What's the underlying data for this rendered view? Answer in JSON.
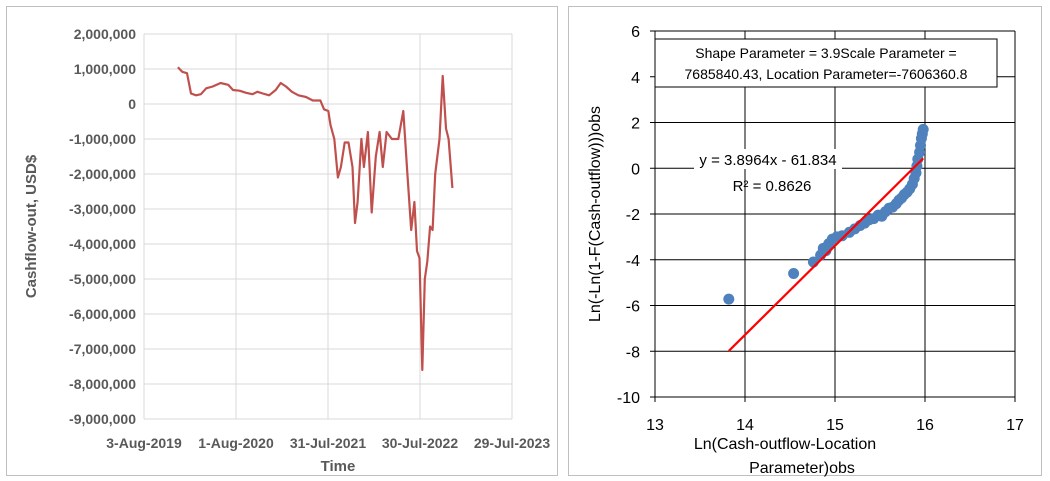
{
  "chart_data": [
    {
      "type": "line",
      "title": "",
      "xlabel": "Time",
      "ylabel": "Cashflow-out, USD$",
      "x_ticks": [
        "3-Aug-2019",
        "1-Aug-2020",
        "31-Jul-2021",
        "30-Jul-2022",
        "29-Jul-2023"
      ],
      "y_ticks": [
        "2,000,000",
        "1,000,000",
        "0",
        "-1,000,000",
        "-2,000,000",
        "-3,000,000",
        "-4,000,000",
        "-5,000,000",
        "-6,000,000",
        "-7,000,000",
        "-8,000,000",
        "-9,000,000"
      ],
      "xlim": [
        "2019-08-03",
        "2023-07-29"
      ],
      "ylim": [
        -9000000,
        2000000
      ],
      "grid": true,
      "line_color": "#c0504d",
      "series": [
        {
          "points": [
            [
              "2019-12-15",
              1050000
            ],
            [
              "2020-01-01",
              920000
            ],
            [
              "2020-01-20",
              880000
            ],
            [
              "2020-02-05",
              300000
            ],
            [
              "2020-02-25",
              250000
            ],
            [
              "2020-03-15",
              280000
            ],
            [
              "2020-04-05",
              450000
            ],
            [
              "2020-05-01",
              500000
            ],
            [
              "2020-06-01",
              600000
            ],
            [
              "2020-07-01",
              550000
            ],
            [
              "2020-07-20",
              400000
            ],
            [
              "2020-08-15",
              380000
            ],
            [
              "2020-09-10",
              320000
            ],
            [
              "2020-10-05",
              280000
            ],
            [
              "2020-10-25",
              350000
            ],
            [
              "2020-11-15",
              300000
            ],
            [
              "2020-12-10",
              250000
            ],
            [
              "2021-01-05",
              400000
            ],
            [
              "2021-01-25",
              600000
            ],
            [
              "2021-02-15",
              500000
            ],
            [
              "2021-03-10",
              350000
            ],
            [
              "2021-04-05",
              250000
            ],
            [
              "2021-05-05",
              200000
            ],
            [
              "2021-06-01",
              100000
            ],
            [
              "2021-07-01",
              100000
            ],
            [
              "2021-07-15",
              -150000
            ],
            [
              "2021-08-01",
              -200000
            ],
            [
              "2021-08-10",
              -600000
            ],
            [
              "2021-08-25",
              -1000000
            ],
            [
              "2021-09-08",
              -2100000
            ],
            [
              "2021-09-20",
              -1800000
            ],
            [
              "2021-10-05",
              -1100000
            ],
            [
              "2021-10-20",
              -1100000
            ],
            [
              "2021-11-05",
              -1800000
            ],
            [
              "2021-11-15",
              -3400000
            ],
            [
              "2021-11-25",
              -2800000
            ],
            [
              "2021-12-10",
              -1000000
            ],
            [
              "2021-12-20",
              -1800000
            ],
            [
              "2022-01-05",
              -800000
            ],
            [
              "2022-01-20",
              -3100000
            ],
            [
              "2022-02-05",
              -1500000
            ],
            [
              "2022-02-20",
              -800000
            ],
            [
              "2022-03-05",
              -1800000
            ],
            [
              "2022-03-20",
              -800000
            ],
            [
              "2022-04-10",
              -1000000
            ],
            [
              "2022-05-05",
              -1000000
            ],
            [
              "2022-05-25",
              -200000
            ],
            [
              "2022-06-10",
              -2000000
            ],
            [
              "2022-06-25",
              -3600000
            ],
            [
              "2022-07-08",
              -2800000
            ],
            [
              "2022-07-18",
              -4200000
            ],
            [
              "2022-07-28",
              -4400000
            ],
            [
              "2022-08-08",
              -7600000
            ],
            [
              "2022-08-18",
              -5000000
            ],
            [
              "2022-08-28",
              -4500000
            ],
            [
              "2022-09-08",
              -3500000
            ],
            [
              "2022-09-18",
              -3600000
            ],
            [
              "2022-09-28",
              -2000000
            ],
            [
              "2022-10-15",
              -1000000
            ],
            [
              "2022-10-28",
              800000
            ],
            [
              "2022-11-10",
              -700000
            ],
            [
              "2022-11-20",
              -1000000
            ],
            [
              "2022-12-05",
              -2400000
            ]
          ]
        }
      ]
    },
    {
      "type": "scatter",
      "title": "",
      "xlabel": "Ln(Cash-outflow-Location Parameter)obs",
      "ylabel": "Ln(-Ln(1-F(Cash-outflow)))obs",
      "x_ticks": [
        "13",
        "14",
        "15",
        "16",
        "17"
      ],
      "y_ticks": [
        "6",
        "4",
        "2",
        "0",
        "-2",
        "-4",
        "-6",
        "-8",
        "-10"
      ],
      "xlim": [
        13,
        17
      ],
      "ylim": [
        -10,
        6
      ],
      "grid": true,
      "point_color": "#4f81bd",
      "trend_color": "#ff0000",
      "points": [
        [
          13.82,
          -5.72
        ],
        [
          14.54,
          -4.6
        ],
        [
          14.76,
          -4.1
        ],
        [
          14.84,
          -3.8
        ],
        [
          14.87,
          -3.5
        ],
        [
          14.9,
          -3.6
        ],
        [
          14.93,
          -3.3
        ],
        [
          14.97,
          -3.1
        ],
        [
          15.02,
          -3.0
        ],
        [
          15.08,
          -2.95
        ],
        [
          15.16,
          -2.8
        ],
        [
          15.22,
          -2.65
        ],
        [
          15.28,
          -2.5
        ],
        [
          15.33,
          -2.4
        ],
        [
          15.38,
          -2.25
        ],
        [
          15.43,
          -2.2
        ],
        [
          15.48,
          -2.05
        ],
        [
          15.52,
          -2.1
        ],
        [
          15.56,
          -1.9
        ],
        [
          15.6,
          -1.75
        ],
        [
          15.64,
          -1.7
        ],
        [
          15.68,
          -1.55
        ],
        [
          15.71,
          -1.4
        ],
        [
          15.74,
          -1.3
        ],
        [
          15.77,
          -1.15
        ],
        [
          15.8,
          -1.05
        ],
        [
          15.83,
          -0.9
        ],
        [
          15.86,
          -0.7
        ],
        [
          15.88,
          -0.45
        ],
        [
          15.9,
          -0.2
        ],
        [
          15.91,
          0.1
        ],
        [
          15.92,
          0.4
        ],
        [
          15.94,
          0.7
        ],
        [
          15.95,
          1.0
        ],
        [
          15.96,
          1.3
        ],
        [
          15.97,
          1.5
        ],
        [
          15.98,
          1.7
        ]
      ],
      "trendline": {
        "slope": 3.8964,
        "intercept": -61.834,
        "x_range": [
          13.82,
          15.98
        ],
        "equation": "y = 3.8964x - 61.834",
        "r2_label": "R² = 0.8626"
      },
      "annotation": [
        "Shape Parameter = 3.9Scale Parameter =",
        "7685840.43, Location Parameter=-7606360.8"
      ]
    }
  ]
}
